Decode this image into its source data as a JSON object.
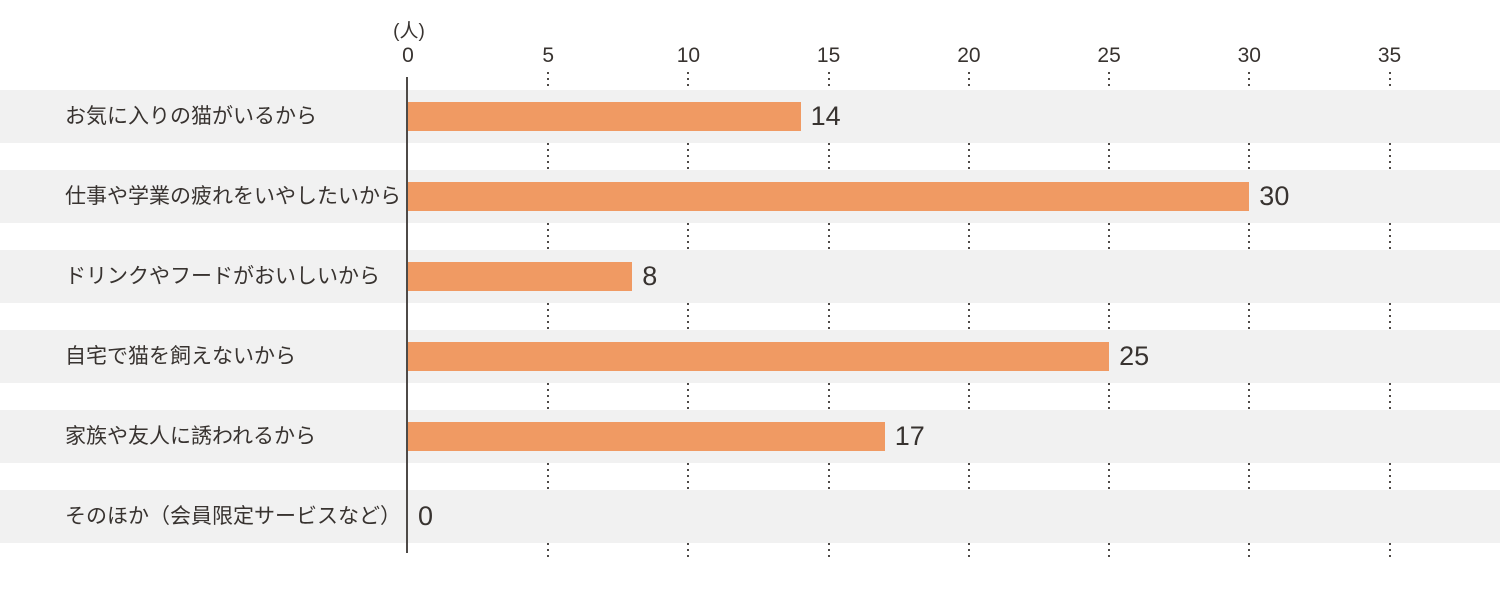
{
  "chart_data": {
    "type": "bar",
    "orientation": "horizontal",
    "title": "",
    "unit_label": "(人)",
    "xlabel": "",
    "ylabel": "",
    "categories": [
      "お気に入りの猫がいるから",
      "仕事や学業の疲れをいやしたいから",
      "ドリンクやフードがおいしいから",
      "自宅で猫を飼えないから",
      "家族や友人に誘われるから",
      "そのほか（会員限定サービスなど）"
    ],
    "values": [
      14,
      30,
      8,
      25,
      17,
      0
    ],
    "value_labels": [
      "14",
      "30",
      "8",
      "25",
      "17",
      "0"
    ],
    "x_ticks": [
      "0",
      "5",
      "10",
      "15",
      "20",
      "25",
      "30",
      "35"
    ],
    "xlim": [
      0,
      35
    ],
    "grid": "dotted vertical lines at each tick, visible between row bands",
    "legend_position": "none",
    "colors": {
      "bar": "#f09a63",
      "row_band": "#f1f1f1",
      "text": "#383330",
      "axis": "#4e4a47"
    }
  }
}
